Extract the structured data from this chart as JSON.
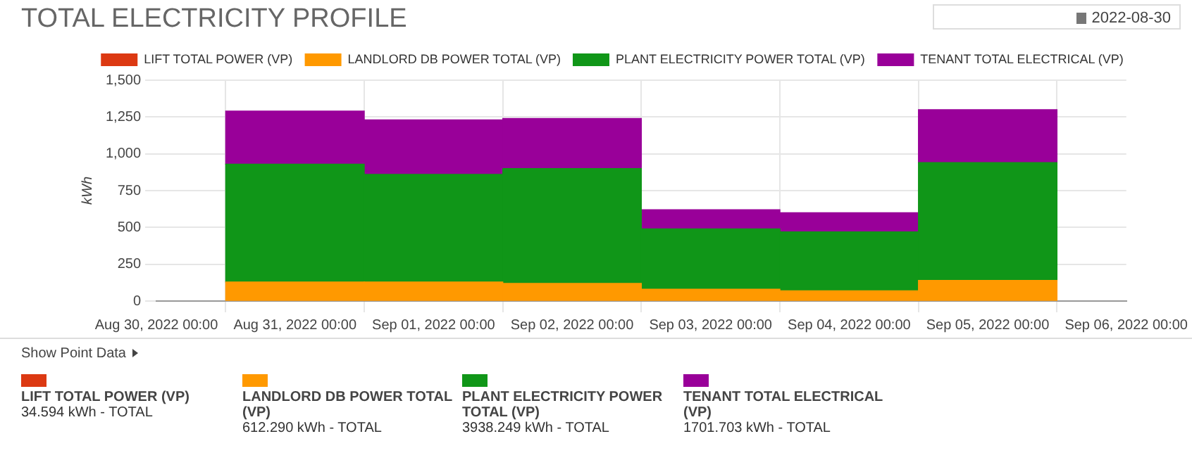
{
  "chart_data": {
    "type": "bar",
    "title": "TOTAL ELECTRICITY PROFILE",
    "ylabel": "kWh",
    "stacked": true,
    "x": [
      "2022-08-31",
      "2022-09-01",
      "2022-09-02",
      "2022-09-03",
      "2022-09-04",
      "2022-09-05"
    ],
    "series": [
      {
        "name": "LIFT TOTAL POWER (VP)",
        "color": "#dc3912",
        "values": [
          null,
          null,
          null,
          null,
          null,
          null
        ]
      },
      {
        "name": "LANDLORD DB POWER TOTAL (VP)",
        "color": "#ff9900",
        "values": [
          130,
          130,
          120,
          80,
          70,
          140
        ]
      },
      {
        "name": "PLANT ELECTRICITY POWER TOTAL (VP)",
        "color": "#109618",
        "values": [
          800,
          730,
          780,
          410,
          400,
          800
        ]
      },
      {
        "name": "TENANT TOTAL ELECTRICAL (VP)",
        "color": "#990099",
        "values": [
          360,
          370,
          340,
          130,
          130,
          360
        ]
      }
    ],
    "xlim": [
      "2022-08-30",
      "2022-09-06"
    ],
    "xticks": [
      {
        "value": "2022-08-30",
        "label": "Aug 30, 2022 00:00"
      },
      {
        "value": "2022-08-31",
        "label": "Aug 31, 2022 00:00"
      },
      {
        "value": "2022-09-01",
        "label": "Sep 01, 2022 00:00"
      },
      {
        "value": "2022-09-02",
        "label": "Sep 02, 2022 00:00"
      },
      {
        "value": "2022-09-03",
        "label": "Sep 03, 2022 00:00"
      },
      {
        "value": "2022-09-04",
        "label": "Sep 04, 2022 00:00"
      },
      {
        "value": "2022-09-05",
        "label": "Sep 05, 2022 00:00"
      },
      {
        "value": "2022-09-06",
        "label": "Sep 06, 2022 00:00"
      }
    ],
    "ylim": [
      0,
      1500
    ],
    "yticks": [
      0,
      {
        "value": 250,
        "label": "250"
      },
      {
        "value": 500,
        "label": "500"
      },
      {
        "value": 750,
        "label": "750"
      },
      {
        "value": 1000,
        "label": "1,000"
      },
      {
        "value": 1250,
        "label": "1,250"
      },
      {
        "value": 1500,
        "label": "1,500"
      }
    ],
    "grid": true,
    "legend": "top",
    "annotations": [
      "2022-08-30",
      "Show Point Data",
      "34.594 kWh - TOTAL",
      "612.290 kWh - TOTAL",
      "3938.249 kWh - TOTAL",
      "1701.703 kWh - TOTAL"
    ]
  }
}
